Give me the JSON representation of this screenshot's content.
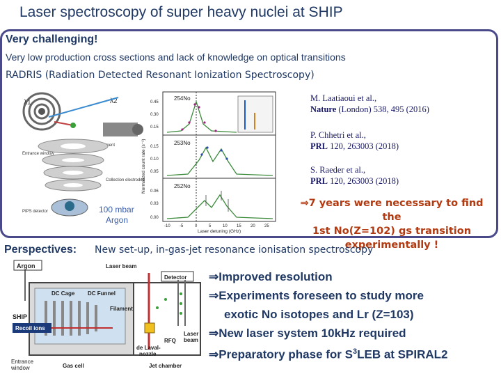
{
  "title": "Laser spectroscopy of super heavy nuclei at SHIP",
  "challenge": "Very challenging!",
  "low_production": "Very low production cross sections and lack of knowledge on optical transitions",
  "radris": "RADRIS (Radiation Detected Resonant Ionization Spectroscopy)",
  "setup_labels": {
    "lambda1": "λ1",
    "lambda2": "λ2",
    "filament": "Filament",
    "entrance": "Entrance window",
    "collection": "Collection electrodes",
    "detector": "PIPS detector",
    "pressure": "100 mbar",
    "gas": "Argon"
  },
  "plot": {
    "ylabel": "Normalized count rate (s⁻¹)",
    "xlabel": "Laser detuning (GHz)",
    "panels": [
      {
        "label": "254No",
        "ticks": [
          "0.45",
          "0.30",
          "0.15"
        ]
      },
      {
        "label": "253No",
        "ticks": [
          "0.15",
          "0.10",
          "0.05"
        ]
      },
      {
        "label": "252No",
        "ticks": [
          "0.06",
          "0.03",
          "0.00"
        ]
      }
    ],
    "xticks": [
      "-10",
      "-5",
      "0",
      "5",
      "10",
      "15",
      "20",
      "25"
    ]
  },
  "refs": [
    {
      "authors": "M. Laatiaoui et al.,",
      "journal": "Nature",
      "rest": " (London) 538, 495 (2016)"
    },
    {
      "authors": "P. Chhetri et al.,",
      "journal": "PRL",
      "rest": " 120, 263003 (2018)"
    },
    {
      "authors": "S. Raeder et al.,",
      "journal": "PRL",
      "rest": " 120, 263003 (2018)"
    }
  ],
  "conclusion": {
    "line1": "⇒7 years were necessary to find the",
    "line2": "1st No(Z=102) gs transition",
    "line3": "experimentally !"
  },
  "perspectives_label": "Perspectives:",
  "perspectives_text": "New set-up, in-gas-jet resonance ionisation spectroscopy",
  "jet_labels": {
    "argon": "Argon",
    "laser_beam": "Laser beam",
    "detector": "Detector",
    "dc_cage": "DC Cage",
    "dc_funnel": "DC Funnel",
    "filament": "Filament",
    "ship": "SHIP",
    "recoil": "Recoil ions",
    "entrance1": "Entrance",
    "entrance2": "window",
    "gas_cell": "Gas cell",
    "laval1": "de Laval-",
    "laval2": "nozzle",
    "rfq": "RFQ",
    "laser_beam2a": "Laser",
    "laser_beam2b": "beam",
    "jet": "Jet chamber"
  },
  "bullets": [
    "⇒Improved resolution",
    "⇒Experiments foreseen to study more",
    "exotic No isotopes and Lr (Z=103)",
    "⇒New laser system 10kHz required",
    "⇒Preparatory phase for S"
  ],
  "bullet_last_sup": "3",
  "bullet_last_tail": "LEB at SPIRAL2",
  "colors": {
    "title": "#1f3864",
    "accent": "#b33a10",
    "frame": "#4a4a8a"
  }
}
